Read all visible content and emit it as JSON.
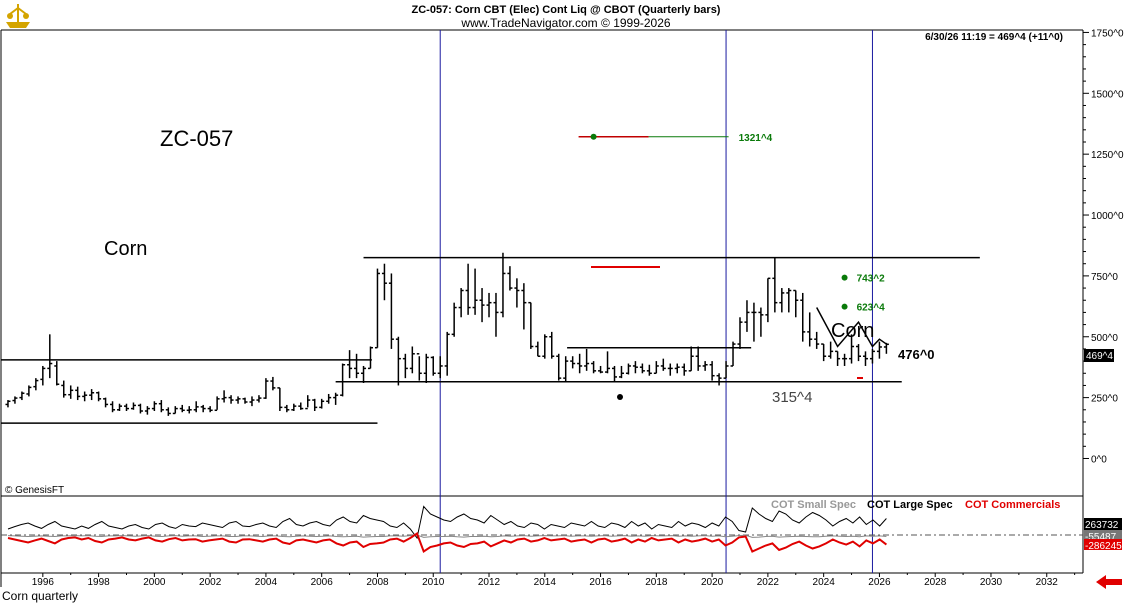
{
  "header": {
    "title": "ZC-057:  Corn CBT (Elec) Cont Liq @ CBOT  (Quarterly bars)",
    "subtitle": "www.TradeNavigator.com © 1999-2026",
    "last_quote": "6/30/26 11:19 = 469^4 (+11^0)"
  },
  "annotations": {
    "symbol": "ZC-057",
    "name_left": "Corn",
    "name_right": "Corn",
    "copyright": "© GenesisFT",
    "target_high": "1321^4",
    "target_mid1": "743^2",
    "target_mid2": "623^4",
    "support": "315^4",
    "current": "476^0",
    "price_tag": "469^4"
  },
  "cot": {
    "legend_small": "COT Small Spec",
    "legend_large": "COT Large Spec",
    "legend_comm": "COT Commercials",
    "tag_large": "263732",
    "tag_small": "-55487",
    "tag_comm": "-286245"
  },
  "status_bar": {
    "text": "Corn quarterly"
  },
  "colors": {
    "bars": "#000000",
    "vertical_lines": "#1a1aa0",
    "target_green": "#0a7a0a",
    "cot_comm": "#e00000",
    "cot_large": "#000000",
    "cot_small": "#888888"
  },
  "chart_data": {
    "type": "bar",
    "title": "ZC-057:  Corn CBT (Elec) Cont Liq @ CBOT  (Quarterly bars)",
    "price_axis": {
      "ylim": [
        -150,
        1760
      ],
      "ticks": [
        0,
        250,
        500,
        750,
        1000,
        1250,
        1500,
        1750
      ],
      "tick_labels": [
        "0^0",
        "250^0",
        "500^0",
        "750^0",
        "1000^0",
        "1250^0",
        "1500^0",
        "1750^0"
      ]
    },
    "time_axis": {
      "xlim": [
        1994.5,
        2033.3
      ],
      "ticks": [
        1996,
        1998,
        2000,
        2002,
        2004,
        2006,
        2008,
        2010,
        2012,
        2014,
        2016,
        2018,
        2020,
        2022,
        2024,
        2026,
        2028,
        2030,
        2032
      ],
      "tick_labels": [
        "1996",
        "1998",
        "2000",
        "2002",
        "2004",
        "2006",
        "2008",
        "2010",
        "2012",
        "2014",
        "2016",
        "2018",
        "2020",
        "2022",
        "2024",
        "2026",
        "2028",
        "2030",
        "2032"
      ]
    },
    "quarterly_bars": [
      [
        1994.75,
        210,
        240,
        222,
        235
      ],
      [
        1995.0,
        225,
        255,
        238,
        248
      ],
      [
        1995.25,
        240,
        275,
        250,
        268
      ],
      [
        1995.5,
        255,
        300,
        265,
        292
      ],
      [
        1995.75,
        280,
        330,
        295,
        320
      ],
      [
        1996.0,
        300,
        380,
        325,
        370
      ],
      [
        1996.25,
        330,
        510,
        370,
        390
      ],
      [
        1996.5,
        300,
        400,
        380,
        305
      ],
      [
        1996.75,
        250,
        320,
        300,
        262
      ],
      [
        1997.0,
        245,
        300,
        262,
        280
      ],
      [
        1997.25,
        240,
        295,
        280,
        255
      ],
      [
        1997.5,
        235,
        275,
        255,
        260
      ],
      [
        1997.75,
        240,
        285,
        260,
        270
      ],
      [
        1998.0,
        235,
        275,
        270,
        245
      ],
      [
        1998.25,
        210,
        250,
        245,
        222
      ],
      [
        1998.5,
        190,
        235,
        222,
        200
      ],
      [
        1998.75,
        195,
        225,
        200,
        215
      ],
      [
        1999.0,
        195,
        225,
        215,
        205
      ],
      [
        1999.25,
        200,
        230,
        205,
        218
      ],
      [
        1999.5,
        185,
        225,
        218,
        195
      ],
      [
        1999.75,
        180,
        215,
        195,
        205
      ],
      [
        2000.0,
        195,
        235,
        205,
        225
      ],
      [
        2000.25,
        190,
        240,
        225,
        200
      ],
      [
        2000.5,
        175,
        210,
        200,
        185
      ],
      [
        2000.75,
        185,
        215,
        185,
        205
      ],
      [
        2001.0,
        190,
        220,
        205,
        198
      ],
      [
        2001.25,
        185,
        215,
        198,
        200
      ],
      [
        2001.5,
        190,
        235,
        200,
        212
      ],
      [
        2001.75,
        190,
        220,
        212,
        205
      ],
      [
        2002.0,
        190,
        215,
        205,
        198
      ],
      [
        2002.25,
        200,
        255,
        198,
        245
      ],
      [
        2002.5,
        230,
        280,
        245,
        250
      ],
      [
        2002.75,
        225,
        260,
        250,
        240
      ],
      [
        2003.0,
        225,
        255,
        240,
        245
      ],
      [
        2003.25,
        225,
        250,
        245,
        232
      ],
      [
        2003.5,
        215,
        255,
        232,
        240
      ],
      [
        2003.75,
        230,
        260,
        240,
        248
      ],
      [
        2004.0,
        245,
        330,
        248,
        318
      ],
      [
        2004.25,
        280,
        335,
        318,
        290
      ],
      [
        2004.5,
        195,
        290,
        290,
        210
      ],
      [
        2004.75,
        190,
        220,
        210,
        200
      ],
      [
        2005.0,
        195,
        225,
        200,
        215
      ],
      [
        2005.25,
        200,
        230,
        215,
        205
      ],
      [
        2005.5,
        210,
        260,
        205,
        240
      ],
      [
        2005.75,
        195,
        245,
        240,
        210
      ],
      [
        2006.0,
        205,
        245,
        210,
        235
      ],
      [
        2006.25,
        225,
        265,
        235,
        250
      ],
      [
        2006.5,
        220,
        270,
        250,
        260
      ],
      [
        2006.75,
        255,
        390,
        260,
        385
      ],
      [
        2007.0,
        330,
        445,
        385,
        370
      ],
      [
        2007.25,
        330,
        430,
        370,
        350
      ],
      [
        2007.5,
        310,
        380,
        350,
        370
      ],
      [
        2007.75,
        370,
        460,
        370,
        455
      ],
      [
        2008.0,
        455,
        780,
        455,
        760
      ],
      [
        2008.25,
        650,
        800,
        760,
        720
      ],
      [
        2008.5,
        450,
        760,
        720,
        490
      ],
      [
        2008.75,
        300,
        500,
        490,
        410
      ],
      [
        2009.0,
        330,
        430,
        410,
        370
      ],
      [
        2009.25,
        350,
        460,
        370,
        430
      ],
      [
        2009.5,
        320,
        420,
        430,
        350
      ],
      [
        2009.75,
        310,
        430,
        350,
        415
      ],
      [
        2010.0,
        340,
        420,
        415,
        350
      ],
      [
        2010.25,
        330,
        420,
        350,
        380
      ],
      [
        2010.5,
        340,
        520,
        380,
        510
      ],
      [
        2010.75,
        500,
        640,
        510,
        620
      ],
      [
        2011.0,
        580,
        700,
        620,
        690
      ],
      [
        2011.25,
        590,
        800,
        690,
        620
      ],
      [
        2011.5,
        590,
        780,
        620,
        650
      ],
      [
        2011.75,
        560,
        700,
        650,
        630
      ],
      [
        2012.0,
        580,
        680,
        630,
        640
      ],
      [
        2012.25,
        500,
        680,
        640,
        600
      ],
      [
        2012.5,
        580,
        845,
        600,
        760
      ],
      [
        2012.75,
        690,
        790,
        760,
        700
      ],
      [
        2013.0,
        620,
        740,
        700,
        690
      ],
      [
        2013.25,
        530,
        720,
        690,
        640
      ],
      [
        2013.5,
        450,
        640,
        640,
        460
      ],
      [
        2013.75,
        420,
        480,
        460,
        420
      ],
      [
        2014.0,
        410,
        510,
        420,
        500
      ],
      [
        2014.25,
        410,
        520,
        500,
        420
      ],
      [
        2014.5,
        320,
        430,
        420,
        330
      ],
      [
        2014.75,
        318,
        420,
        330,
        400
      ],
      [
        2015.0,
        370,
        420,
        400,
        390
      ],
      [
        2015.25,
        350,
        430,
        390,
        380
      ],
      [
        2015.5,
        360,
        450,
        380,
        390
      ],
      [
        2015.75,
        350,
        400,
        390,
        360
      ],
      [
        2016.0,
        350,
        380,
        360,
        355
      ],
      [
        2016.25,
        350,
        440,
        355,
        370
      ],
      [
        2016.5,
        315,
        380,
        370,
        335
      ],
      [
        2016.75,
        330,
        380,
        335,
        350
      ],
      [
        2017.0,
        345,
        390,
        350,
        380
      ],
      [
        2017.25,
        350,
        400,
        380,
        375
      ],
      [
        2017.5,
        350,
        390,
        375,
        360
      ],
      [
        2017.75,
        340,
        385,
        360,
        350
      ],
      [
        2018.0,
        350,
        400,
        350,
        380
      ],
      [
        2018.25,
        360,
        410,
        380,
        370
      ],
      [
        2018.5,
        340,
        390,
        370,
        370
      ],
      [
        2018.75,
        350,
        390,
        370,
        375
      ],
      [
        2019.0,
        340,
        390,
        375,
        360
      ],
      [
        2019.25,
        360,
        460,
        360,
        420
      ],
      [
        2019.5,
        360,
        460,
        420,
        380
      ],
      [
        2019.75,
        360,
        400,
        380,
        385
      ],
      [
        2020.0,
        320,
        400,
        385,
        340
      ],
      [
        2020.25,
        300,
        350,
        340,
        330
      ],
      [
        2020.5,
        330,
        400,
        330,
        380
      ],
      [
        2020.75,
        380,
        480,
        380,
        470
      ],
      [
        2021.0,
        450,
        580,
        470,
        560
      ],
      [
        2021.25,
        520,
        650,
        560,
        600
      ],
      [
        2021.5,
        480,
        640,
        600,
        600
      ],
      [
        2021.75,
        500,
        620,
        600,
        590
      ],
      [
        2022.0,
        560,
        740,
        590,
        740
      ],
      [
        2022.25,
        600,
        825,
        740,
        640
      ],
      [
        2022.5,
        600,
        700,
        640,
        680
      ],
      [
        2022.75,
        600,
        700,
        680,
        690
      ],
      [
        2023.0,
        580,
        690,
        690,
        650
      ],
      [
        2023.25,
        480,
        680,
        650,
        520
      ],
      [
        2023.5,
        460,
        600,
        520,
        490
      ],
      [
        2023.75,
        450,
        520,
        490,
        470
      ],
      [
        2024.0,
        400,
        470,
        470,
        420
      ],
      [
        2024.25,
        410,
        480,
        420,
        440
      ],
      [
        2024.5,
        380,
        440,
        440,
        410
      ],
      [
        2024.75,
        380,
        430,
        410,
        410
      ],
      [
        2025.0,
        390,
        510,
        410,
        460
      ],
      [
        2025.25,
        400,
        470,
        460,
        420
      ],
      [
        2025.5,
        380,
        440,
        420,
        410
      ],
      [
        2025.75,
        390,
        450,
        410,
        440
      ],
      [
        2026.0,
        410,
        480,
        440,
        458
      ],
      [
        2026.25,
        430,
        475,
        458,
        469
      ]
    ],
    "horizontal_lines": [
      {
        "from": 1994.5,
        "to": 2008.0,
        "value": 145
      },
      {
        "from": 1994.5,
        "to": 2007.8,
        "value": 405
      },
      {
        "from": 2006.5,
        "to": 2026.8,
        "value": 315
      },
      {
        "from": 2007.5,
        "to": 2029.6,
        "value": 825
      },
      {
        "from": 2014.8,
        "to": 2021.4,
        "value": 455
      }
    ],
    "vertical_lines": [
      2010.25,
      2020.5,
      2025.75
    ],
    "projection_path": [
      [
        2023.75,
        620
      ],
      [
        2024.5,
        460
      ],
      [
        2025.25,
        560
      ],
      [
        2025.75,
        460
      ],
      [
        2026.0,
        490
      ],
      [
        2026.25,
        470
      ]
    ],
    "targets": [
      {
        "label": "1321^4",
        "x": 2015.75,
        "value": 1321.5
      },
      {
        "label": "743^2",
        "x": 2024.75,
        "value": 743
      },
      {
        "label": "623^4",
        "x": 2024.75,
        "value": 623.5
      }
    ],
    "cot_series_names": [
      "COT Small Spec",
      "COT Large Spec",
      "COT Commercials"
    ],
    "cot_large": [
      20,
      28,
      35,
      40,
      30,
      22,
      35,
      45,
      30,
      25,
      20,
      30,
      22,
      35,
      45,
      30,
      25,
      20,
      30,
      35,
      25,
      20,
      35,
      40,
      28,
      22,
      35,
      30,
      28,
      40,
      35,
      30,
      25,
      40,
      45,
      30,
      28,
      35,
      40,
      30,
      25,
      45,
      55,
      35,
      30,
      40,
      45,
      35,
      30,
      50,
      60,
      45,
      40,
      65,
      55,
      50,
      45,
      30,
      25,
      40,
      20,
      -10,
      95,
      70,
      60,
      50,
      45,
      60,
      70,
      55,
      50,
      40,
      65,
      50,
      35,
      45,
      30,
      25,
      40,
      35,
      20,
      35,
      30,
      25,
      40,
      35,
      30,
      45,
      30,
      25,
      40,
      35,
      25,
      45,
      30,
      40,
      20,
      35,
      30,
      25,
      45,
      30,
      40,
      35,
      25,
      40,
      30,
      60,
      45,
      15,
      10,
      90,
      70,
      55,
      45,
      80,
      70,
      50,
      40,
      60,
      75,
      65,
      50,
      30,
      45,
      55,
      40,
      60,
      35,
      50,
      30,
      55
    ],
    "cot_comm": [
      -10,
      -15,
      -20,
      -25,
      -18,
      -12,
      -20,
      -28,
      -15,
      -10,
      -8,
      -15,
      -10,
      -20,
      -25,
      -15,
      -12,
      -8,
      -15,
      -18,
      -12,
      -8,
      -18,
      -22,
      -14,
      -10,
      -18,
      -15,
      -14,
      -22,
      -18,
      -15,
      -12,
      -22,
      -25,
      -15,
      -14,
      -18,
      -22,
      -15,
      -12,
      -25,
      -30,
      -18,
      -15,
      -20,
      -25,
      -18,
      -15,
      -28,
      -35,
      -25,
      -22,
      -40,
      -30,
      -28,
      -25,
      -15,
      -12,
      -22,
      -10,
      5,
      -55,
      -40,
      -35,
      -28,
      -25,
      -35,
      -40,
      -30,
      -28,
      -22,
      -38,
      -28,
      -18,
      -25,
      -15,
      -12,
      -22,
      -18,
      -10,
      -18,
      -15,
      -12,
      -22,
      -18,
      -15,
      -25,
      -15,
      -12,
      -22,
      -18,
      -12,
      -25,
      -15,
      -22,
      -10,
      -18,
      -15,
      -12,
      -25,
      -15,
      -22,
      -18,
      -12,
      -22,
      -15,
      -35,
      -25,
      -8,
      -5,
      -55,
      -45,
      -35,
      -28,
      -50,
      -42,
      -30,
      -22,
      -35,
      -45,
      -38,
      -28,
      -15,
      -25,
      -32,
      -22,
      -38,
      -18,
      -28,
      -15,
      -32
    ],
    "cot_small": [
      -2,
      -3,
      -4,
      -5,
      -4,
      -3,
      -4,
      -5,
      -3,
      -3,
      -2,
      -3,
      -2,
      -4,
      -5,
      -3,
      -3,
      -2,
      -3,
      -4,
      -3,
      -2,
      -4,
      -5,
      -3,
      -2,
      -4,
      -3,
      -3,
      -5,
      -4,
      -3,
      -3,
      -5,
      -5,
      -3,
      -3,
      -4,
      -5,
      -3,
      -3,
      -5,
      -6,
      -4,
      -3,
      -4,
      -5,
      -4,
      -3,
      -5,
      -6,
      -5,
      -4,
      -7,
      -6,
      -5,
      -5,
      -3,
      -3,
      -4,
      -2,
      0,
      -8,
      -6,
      -5,
      -5,
      -4,
      -6,
      -7,
      -5,
      -5,
      -4,
      -6,
      -5,
      -3,
      -4,
      -3,
      -2,
      -4,
      -3,
      -2,
      -3,
      -3,
      -2,
      -4,
      -3,
      -3,
      -4,
      -3,
      -2,
      -4,
      -3,
      -2,
      -4,
      -3,
      -4,
      -2,
      -3,
      -3,
      -2,
      -4,
      -3,
      -4,
      -3,
      -2,
      -4,
      -3,
      -6,
      -4,
      -2,
      -1,
      -8,
      -7,
      -5,
      -4,
      -7,
      -6,
      -5,
      -4,
      -5,
      -6,
      -6,
      -4,
      -3,
      -4,
      -5,
      -4,
      -6,
      -3,
      -4,
      -3,
      -5
    ]
  }
}
